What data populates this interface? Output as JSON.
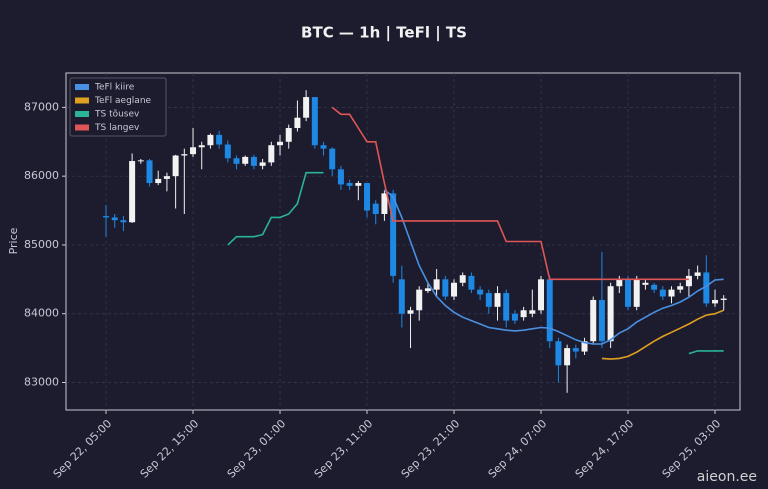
{
  "chart_data": {
    "type": "candlestick",
    "title": "BTC — 1h  |  TeFl  |  TS",
    "ylabel": "Price",
    "watermark": "aieon.ee",
    "up_color": "#f2f2f2",
    "down_color": "#1e88e5",
    "grid": true,
    "legend": "upper left",
    "ylim": [
      82600,
      87500
    ],
    "yticks": [
      83000,
      84000,
      85000,
      86000,
      87000
    ],
    "categories": [
      "Sep 22, 05:00",
      null,
      null,
      null,
      null,
      null,
      null,
      null,
      null,
      null,
      "Sep 22, 15:00",
      null,
      null,
      null,
      null,
      null,
      null,
      null,
      null,
      null,
      "Sep 23, 01:00",
      null,
      null,
      null,
      null,
      null,
      null,
      null,
      null,
      null,
      "Sep 23, 11:00",
      null,
      null,
      null,
      null,
      null,
      null,
      null,
      null,
      null,
      "Sep 23, 21:00",
      null,
      null,
      null,
      null,
      null,
      null,
      null,
      null,
      null,
      "Sep 24, 07:00",
      null,
      null,
      null,
      null,
      null,
      null,
      null,
      null,
      null,
      "Sep 24, 17:00",
      null,
      null,
      null,
      null,
      null,
      null,
      null,
      null,
      null,
      "Sep 25, 03:00",
      null
    ],
    "open": [
      85420,
      85400,
      85360,
      85330,
      86220,
      86230,
      85900,
      85960,
      86000,
      86300,
      86320,
      86420,
      86450,
      86600,
      86460,
      86260,
      86180,
      86280,
      86150,
      86200,
      86450,
      86500,
      86700,
      86850,
      87150,
      86450,
      86400,
      86100,
      85900,
      85860,
      85900,
      85600,
      85450,
      85750,
      84500,
      84000,
      84050,
      84330,
      84350,
      84500,
      84250,
      84450,
      84550,
      84350,
      84300,
      84100,
      84300,
      84000,
      83950,
      84000,
      84050,
      84500,
      83600,
      83250,
      83500,
      83450,
      83600,
      84200,
      83600,
      84400,
      84500,
      84100,
      84420,
      84420,
      84350,
      84250,
      84350,
      84400,
      84550,
      84600,
      84150,
      84200
    ],
    "high": [
      85580,
      85450,
      85420,
      86330,
      86250,
      86250,
      86080,
      86050,
      86310,
      86400,
      86700,
      86500,
      86620,
      86660,
      86520,
      86300,
      86300,
      86310,
      86250,
      86500,
      86600,
      86750,
      87100,
      87250,
      87150,
      86500,
      86420,
      86150,
      85950,
      85930,
      85900,
      85650,
      85800,
      85800,
      84700,
      84100,
      84400,
      84450,
      84650,
      84550,
      84500,
      84600,
      84600,
      84400,
      84350,
      84400,
      84350,
      84050,
      84100,
      84350,
      84550,
      84550,
      83650,
      83550,
      83550,
      83650,
      84250,
      84900,
      84450,
      84550,
      84550,
      84550,
      84500,
      84450,
      84400,
      84400,
      84450,
      84650,
      84700,
      84850,
      84350,
      84270
    ],
    "low": [
      85120,
      85250,
      85200,
      85320,
      86180,
      85850,
      85870,
      85780,
      85530,
      85450,
      86280,
      86100,
      86400,
      86400,
      86200,
      86100,
      86150,
      86100,
      86100,
      86150,
      86300,
      86400,
      86650,
      86800,
      86400,
      86300,
      86000,
      85800,
      85800,
      85650,
      85400,
      85300,
      85350,
      84450,
      83800,
      83500,
      83900,
      84300,
      84250,
      84200,
      84200,
      84400,
      84300,
      84200,
      84000,
      83900,
      83800,
      83850,
      83900,
      83950,
      84000,
      83500,
      83000,
      82850,
      83350,
      83400,
      83550,
      83500,
      83500,
      84300,
      84050,
      84050,
      84350,
      84300,
      84200,
      84150,
      84300,
      84250,
      84500,
      84100,
      84100,
      84050
    ],
    "close": [
      85400,
      85360,
      85330,
      86220,
      86230,
      85900,
      85960,
      86000,
      86300,
      86320,
      86420,
      86450,
      86600,
      86460,
      86260,
      86180,
      86280,
      86150,
      86200,
      86450,
      86500,
      86700,
      86850,
      87150,
      86450,
      86400,
      86100,
      85880,
      85860,
      85900,
      85500,
      85450,
      85750,
      84550,
      84000,
      84050,
      84350,
      84370,
      84500,
      84250,
      84450,
      84560,
      84350,
      84280,
      84100,
      84300,
      83900,
      83900,
      84050,
      84050,
      84500,
      83600,
      83250,
      83500,
      83450,
      83600,
      84200,
      83600,
      84400,
      84500,
      84100,
      84500,
      84450,
      84350,
      84250,
      84350,
      84400,
      84550,
      84600,
      84150,
      84200,
      84220
    ],
    "series": [
      {
        "name": "TeFl kiire",
        "color": "#4a90e2",
        "values": [
          null,
          null,
          null,
          null,
          null,
          null,
          null,
          null,
          null,
          null,
          null,
          null,
          null,
          null,
          null,
          null,
          null,
          null,
          null,
          null,
          null,
          null,
          null,
          null,
          null,
          null,
          null,
          null,
          null,
          null,
          null,
          null,
          85800,
          85700,
          85400,
          85050,
          84700,
          84450,
          84250,
          84120,
          84020,
          83950,
          83900,
          83850,
          83800,
          83780,
          83760,
          83750,
          83760,
          83780,
          83800,
          83790,
          83740,
          83680,
          83620,
          83580,
          83560,
          83560,
          83620,
          83720,
          83780,
          83880,
          83950,
          84020,
          84080,
          84120,
          84170,
          84240,
          84330,
          84400,
          84490,
          84500
        ]
      },
      {
        "name": "TeFl aeglane",
        "color": "#e0a020",
        "values": [
          null,
          null,
          null,
          null,
          null,
          null,
          null,
          null,
          null,
          null,
          null,
          null,
          null,
          null,
          null,
          null,
          null,
          null,
          null,
          null,
          null,
          null,
          null,
          null,
          null,
          null,
          null,
          null,
          null,
          null,
          null,
          null,
          null,
          null,
          null,
          null,
          null,
          null,
          null,
          null,
          null,
          null,
          null,
          null,
          null,
          null,
          null,
          null,
          null,
          null,
          null,
          null,
          null,
          null,
          null,
          null,
          null,
          83350,
          83340,
          83350,
          83380,
          83440,
          83520,
          83600,
          83670,
          83730,
          83790,
          83850,
          83920,
          83980,
          84000,
          84050
        ]
      },
      {
        "name": "TS tõusev",
        "color": "#2bb39a",
        "values": [
          null,
          null,
          null,
          null,
          null,
          null,
          null,
          null,
          null,
          null,
          null,
          null,
          null,
          null,
          85000,
          85120,
          85120,
          85120,
          85150,
          85400,
          85400,
          85450,
          85600,
          86050,
          86050,
          86050,
          null,
          null,
          null,
          null,
          null,
          null,
          null,
          null,
          null,
          null,
          null,
          null,
          null,
          null,
          null,
          null,
          null,
          null,
          null,
          null,
          null,
          null,
          null,
          null,
          null,
          null,
          null,
          null,
          null,
          null,
          null,
          null,
          null,
          null,
          null,
          null,
          null,
          null,
          null,
          null,
          null,
          83420,
          83460,
          83460,
          83460,
          83460
        ]
      },
      {
        "name": "TS langev",
        "color": "#e05555",
        "values": [
          null,
          null,
          null,
          null,
          null,
          null,
          null,
          null,
          null,
          null,
          null,
          null,
          null,
          null,
          null,
          null,
          null,
          null,
          null,
          null,
          null,
          null,
          null,
          null,
          null,
          null,
          87000,
          86900,
          86900,
          86700,
          86500,
          86500,
          85900,
          85350,
          85350,
          85350,
          85350,
          85350,
          85350,
          85350,
          85350,
          85350,
          85350,
          85350,
          85350,
          85350,
          85050,
          85050,
          85050,
          85050,
          85050,
          84500,
          84500,
          84500,
          84500,
          84500,
          84500,
          84500,
          84500,
          84500,
          84500,
          84500,
          84500,
          84500,
          84500,
          84500,
          84500,
          84500,
          null,
          null,
          null,
          null
        ]
      }
    ]
  }
}
